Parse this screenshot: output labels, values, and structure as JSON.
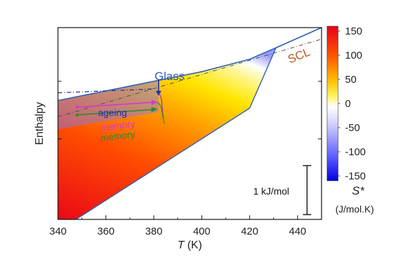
{
  "chart_data": {
    "type": "area",
    "xlabel_symbol": "T",
    "xlabel_unit": " (K)",
    "ylabel": "Enthalpy",
    "xlim": [
      340,
      450
    ],
    "x_ticks": [
      "340",
      "360",
      "380",
      "400",
      "420",
      "440"
    ],
    "x_tick_values": [
      340,
      360,
      380,
      400,
      420,
      440
    ],
    "series": [
      {
        "name": "Glass",
        "x": [
          340,
          360,
          380,
          400,
          420,
          431,
          450
        ],
        "y": [
          0.62,
          0.67,
          0.72,
          0.77,
          0.835,
          0.895,
          1.0
        ]
      },
      {
        "name": "SCL",
        "x": [
          340,
          360,
          380,
          400,
          420,
          431,
          450
        ],
        "y": [
          -0.06,
          0.1,
          0.26,
          0.42,
          0.58,
          0.895,
          1.0
        ]
      }
    ],
    "annotations": {
      "glass_label": "Glass",
      "scl_label": "SCL",
      "ageing_label": "ageing",
      "memory_label_1": "memory",
      "memory_label_2": "memory",
      "scale_bar_label": "1 kJ/mol"
    },
    "colorbar": {
      "title": "S*",
      "unit": "(J/mol.K)",
      "ticks": [
        "150",
        "100",
        "50",
        "0",
        "-50",
        "-100",
        "-150"
      ],
      "tick_values": [
        150,
        100,
        50,
        0,
        -50,
        -100,
        -150
      ],
      "range": [
        -160,
        160
      ]
    },
    "colors": {
      "glass_line": "#2f5fb3",
      "scl_label": "#b85a1f",
      "ageing": "#1a2fb0",
      "memory_magenta": "#d23ad0",
      "memory_green": "#2e8b2e"
    }
  }
}
